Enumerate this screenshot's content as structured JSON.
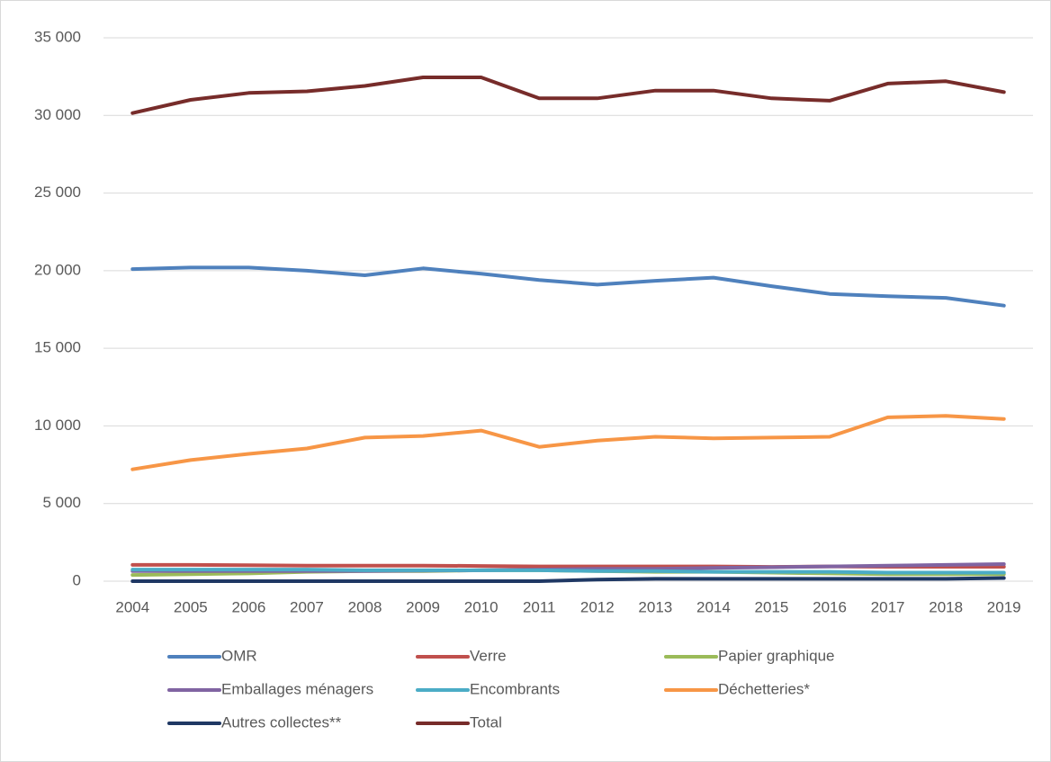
{
  "chart_data": {
    "type": "line",
    "categories": [
      "2004",
      "2005",
      "2006",
      "2007",
      "2008",
      "2009",
      "2010",
      "2011",
      "2012",
      "2013",
      "2014",
      "2015",
      "2016",
      "2017",
      "2018",
      "2019"
    ],
    "series": [
      {
        "name": "OMR",
        "color": "#4f81bd",
        "values": [
          20100,
          20200,
          20200,
          20000,
          19700,
          20150,
          19800,
          19400,
          19100,
          19350,
          19550,
          19000,
          18500,
          18350,
          18250,
          17750
        ]
      },
      {
        "name": "Verre",
        "color": "#c0504d",
        "values": [
          1050,
          1050,
          1030,
          1000,
          1000,
          1000,
          980,
          950,
          950,
          950,
          950,
          920,
          950,
          930,
          930,
          930
        ]
      },
      {
        "name": "Papier graphique",
        "color": "#9bbb59",
        "values": [
          400,
          450,
          500,
          600,
          650,
          650,
          700,
          700,
          650,
          600,
          600,
          550,
          500,
          450,
          450,
          450
        ]
      },
      {
        "name": "Emballages ménagers",
        "color": "#8064a2",
        "values": [
          650,
          650,
          650,
          650,
          650,
          680,
          700,
          750,
          800,
          800,
          850,
          900,
          950,
          1000,
          1050,
          1100
        ]
      },
      {
        "name": "Encombrants",
        "color": "#4bacc6",
        "values": [
          750,
          750,
          750,
          750,
          700,
          700,
          700,
          700,
          650,
          650,
          600,
          600,
          600,
          550,
          550,
          550
        ]
      },
      {
        "name": "Déchetteries*",
        "color": "#f79646",
        "values": [
          7200,
          7800,
          8200,
          8550,
          9250,
          9350,
          9700,
          8650,
          9050,
          9300,
          9200,
          9250,
          9300,
          10550,
          10650,
          10450
        ]
      },
      {
        "name": "Autres collectes**",
        "color": "#1f3864",
        "values": [
          0,
          0,
          0,
          0,
          0,
          0,
          0,
          0,
          100,
          150,
          150,
          150,
          150,
          150,
          150,
          200
        ]
      },
      {
        "name": "Total",
        "color": "#772c2a",
        "values": [
          30150,
          31000,
          31450,
          31550,
          31900,
          32450,
          32450,
          31100,
          31100,
          31600,
          31600,
          31100,
          30950,
          32050,
          32200,
          31500
        ]
      }
    ],
    "ylim": [
      0,
      35000
    ],
    "yticks": [
      0,
      {
        "value": 5000,
        "label": "5 000"
      },
      {
        "value": 10000,
        "label": "10 000"
      },
      {
        "value": 15000,
        "label": "15 000"
      },
      {
        "value": 20000,
        "label": "20 000"
      },
      {
        "value": 25000,
        "label": "25 000"
      },
      {
        "value": 30000,
        "label": "30 000"
      },
      {
        "value": 35000,
        "label": "35 000"
      }
    ],
    "grid": true
  }
}
